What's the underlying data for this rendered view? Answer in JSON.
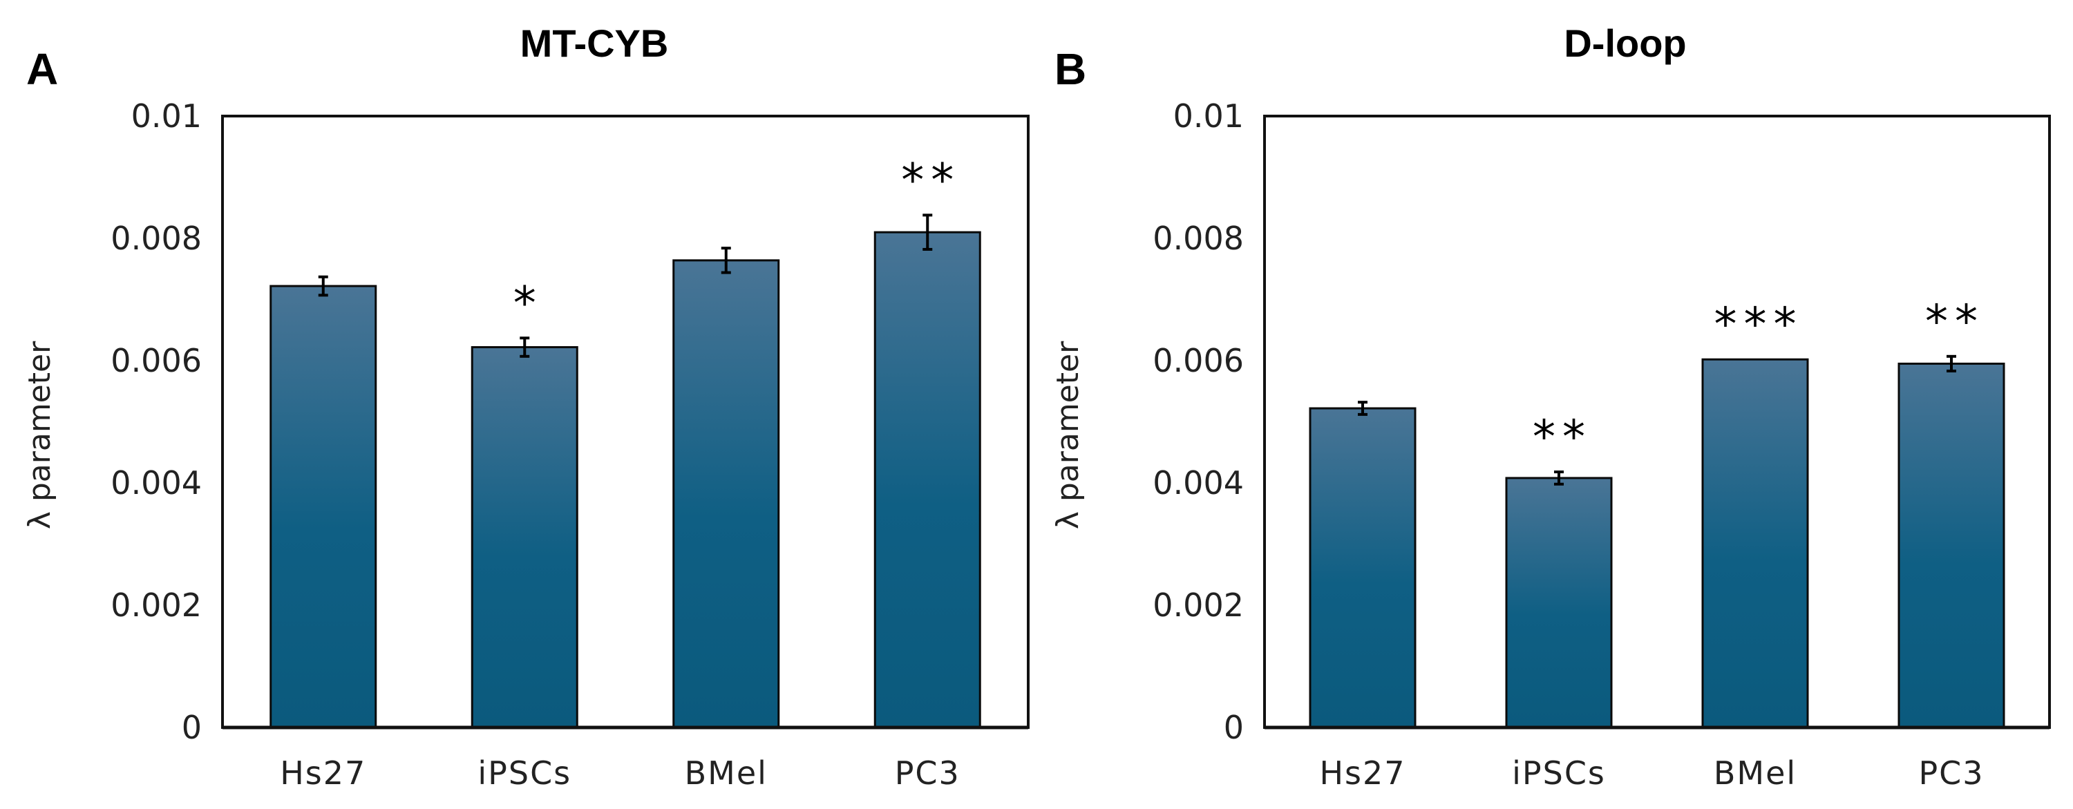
{
  "chart_data": [
    {
      "type": "bar",
      "panel": "A",
      "title": "MT-CYB",
      "xlabel": "",
      "ylabel": "λ parameter",
      "ylim": [
        0,
        0.01
      ],
      "yticks": [
        "0",
        "0.002",
        "0.004",
        "0.006",
        "0.008",
        "0.01"
      ],
      "categories": [
        "Hs27",
        "iPSCs",
        "BMel",
        "PC3"
      ],
      "values": [
        0.00722,
        0.00622,
        0.00764,
        0.0081
      ],
      "errors": [
        0.00015,
        0.00015,
        0.0002,
        0.00028
      ],
      "significance": [
        "",
        "*",
        "",
        "**"
      ],
      "color": "#0f5f84"
    },
    {
      "type": "bar",
      "panel": "B",
      "title": "D-loop",
      "xlabel": "",
      "ylabel": "λ parameter",
      "ylim": [
        0,
        0.01
      ],
      "yticks": [
        "0",
        "0.002",
        "0.004",
        "0.006",
        "0.008",
        "0.01"
      ],
      "categories": [
        "Hs27",
        "iPSCs",
        "BMel",
        "PC3"
      ],
      "values": [
        0.00522,
        0.00408,
        0.00602,
        0.00595
      ],
      "errors": [
        0.0001,
        0.0001,
        0.0,
        0.00012
      ],
      "significance": [
        "",
        "**",
        "***",
        "**"
      ],
      "color": "#0f5f84"
    }
  ]
}
